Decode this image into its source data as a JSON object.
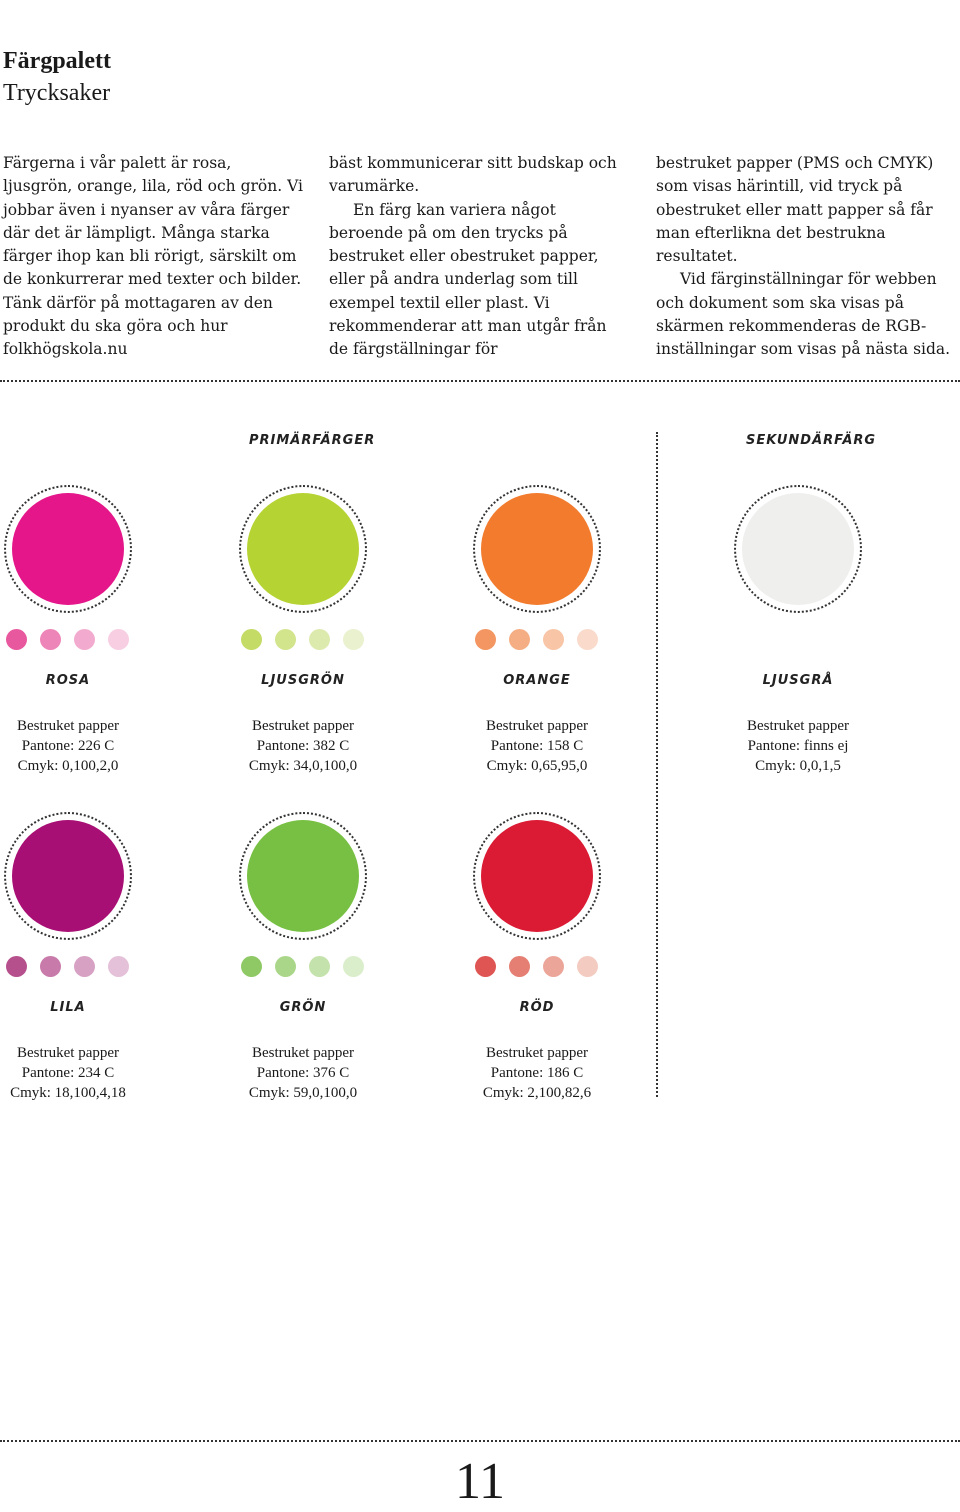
{
  "header": {
    "title": "Färgpalett",
    "subtitle": "Trycksaker"
  },
  "intro": {
    "col1": "Färgerna i vår palett är rosa, ljusgrön, orange, lila, röd och grön. Vi jobbar även i nyanser av våra färger där det är lämpligt. Många starka färger ihop kan bli rörigt, särskilt om de konkurrerar med texter och bilder. Tänk därför på mottagaren av den produkt du ska göra och hur folkhögskola.nu",
    "col2a": "bäst kommunicerar sitt budskap och varumärke.",
    "col2b": "En färg kan variera något beroende på om den trycks på bestruket eller obestruket papper, eller på andra underlag som till exempel textil eller plast. Vi rekommenderar att man utgår från de färgställningar för",
    "col3a": "bestruket papper (PMS och CMYK) som visas härintill, vid tryck på obestruket eller matt papper så får man efterlikna det bestrukna resultatet.",
    "col3b": "Vid färginställningar för webben och dokument som ska visas på skärmen rekommenderas de RGB-inställningar som visas på nästa sida."
  },
  "sections": {
    "primary": "Primärfärger",
    "secondary": "Sekundärfärg"
  },
  "swatches": [
    {
      "name": "Rosa",
      "paper": "Bestruket papper",
      "pantone": "Pantone: 226 C",
      "cmyk": "Cmyk: 0,100,2,0",
      "color": "#E5158A",
      "tints": [
        "#E8589F",
        "#EE85B8",
        "#F2ABCE",
        "#F7CEE2"
      ]
    },
    {
      "name": "Ljusgrön",
      "paper": "Bestruket papper",
      "pantone": "Pantone: 382 C",
      "cmyk": "Cmyk: 34,0,100,0",
      "color": "#B6D334",
      "tints": [
        "#C4DB66",
        "#D2E48C",
        "#DDEAAD",
        "#E9F1CF"
      ]
    },
    {
      "name": "Orange",
      "paper": "Bestruket papper",
      "pantone": "Pantone: 158 C",
      "cmyk": "Cmyk: 0,65,95,0",
      "color": "#F27B2D",
      "tints": [
        "#F39661",
        "#F5AE84",
        "#F8C5A6",
        "#FADACA"
      ]
    },
    {
      "name": "Ljusgrå",
      "paper": "Bestruket papper",
      "pantone": "Pantone: finns ej",
      "cmyk": "Cmyk: 0,0,1,5",
      "color": "#EFEFEE",
      "tints": []
    },
    {
      "name": "Lila",
      "paper": "Bestruket papper",
      "pantone": "Pantone: 234 C",
      "cmyk": "Cmyk: 18,100,4,18",
      "color": "#A80F74",
      "tints": [
        "#B6508D",
        "#C87AAA",
        "#D7A1C4",
        "#E4C1D8"
      ]
    },
    {
      "name": "Grön",
      "paper": "Bestruket papper",
      "pantone": "Pantone: 376 C",
      "cmyk": "Cmyk: 59,0,100,0",
      "color": "#78C043",
      "tints": [
        "#8FC965",
        "#AAD68A",
        "#C4E2AB",
        "#DAEECB"
      ]
    },
    {
      "name": "Röd",
      "paper": "Bestruket papper",
      "pantone": "Pantone: 186 C",
      "cmyk": "Cmyk: 2,100,82,6",
      "color": "#DB1A34",
      "tints": [
        "#DE5553",
        "#E57F73",
        "#ECA699",
        "#F3CBC1"
      ]
    }
  ],
  "page_number": "11"
}
